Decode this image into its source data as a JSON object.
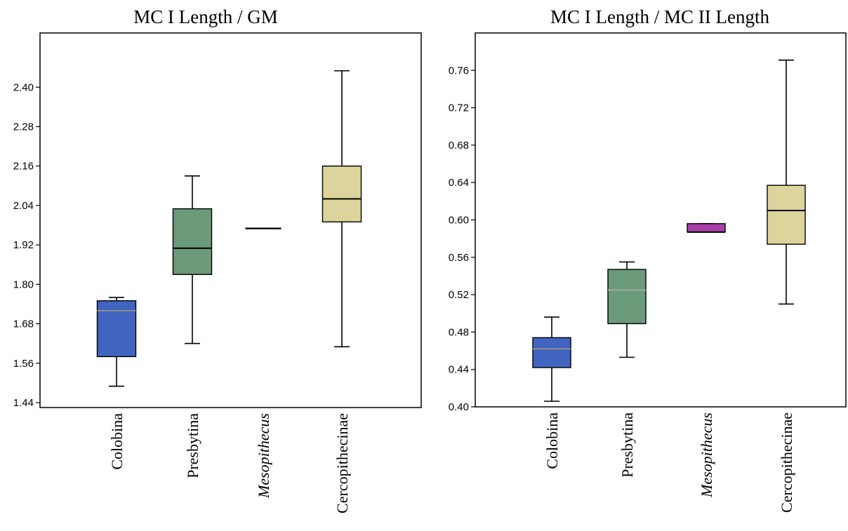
{
  "chart_data": [
    {
      "type": "boxplot",
      "title": "MC I Length / GM",
      "xlabel": "",
      "ylabel": "",
      "categories": [
        "Colobina",
        "Presbytina",
        "Mesopithecus",
        "Cercopithecinae"
      ],
      "italic_categories": [
        "Mesopithecus"
      ],
      "ylim": [
        1.425,
        2.565
      ],
      "yticks": [
        1.44,
        1.56,
        1.68,
        1.8,
        1.92,
        2.04,
        2.16,
        2.28,
        2.4
      ],
      "ytick_labels": [
        "1.44",
        "1.56",
        "1.68",
        "1.80",
        "1.92",
        "2.04",
        "2.16",
        "2.28",
        "2.40"
      ],
      "grid": false,
      "boxes": [
        {
          "category": "Colobina",
          "min": 1.49,
          "q1": 1.58,
          "median": 1.72,
          "q3": 1.75,
          "max": 1.76,
          "color": "#4064c0",
          "median_color": "#8c8c8c"
        },
        {
          "category": "Presbytina",
          "min": 1.62,
          "q1": 1.83,
          "median": 1.91,
          "q3": 2.03,
          "max": 2.13,
          "color": "#6a9a7a",
          "median_color": "#000000"
        },
        {
          "category": "Mesopithecus",
          "min": 1.97,
          "q1": 1.97,
          "median": 1.97,
          "q3": 1.97,
          "max": 1.97,
          "color": "#000000",
          "median_color": "#000000"
        },
        {
          "category": "Cercopithecinae",
          "min": 1.61,
          "q1": 1.99,
          "median": 2.06,
          "q3": 2.16,
          "max": 2.45,
          "color": "#dcd49c",
          "median_color": "#000000"
        }
      ]
    },
    {
      "type": "boxplot",
      "title": "MC I Length / MC II Length",
      "xlabel": "",
      "ylabel": "",
      "categories": [
        "Colobina",
        "Presbytina",
        "Mesopithecus",
        "Cercopithecinae"
      ],
      "italic_categories": [
        "Mesopithecus"
      ],
      "ylim": [
        0.4,
        0.8
      ],
      "yticks": [
        0.4,
        0.44,
        0.48,
        0.52,
        0.56,
        0.6,
        0.64,
        0.68,
        0.72,
        0.76
      ],
      "ytick_labels": [
        "0.40",
        "0.44",
        "0.48",
        "0.52",
        "0.56",
        "0.60",
        "0.64",
        "0.68",
        "0.72",
        "0.76"
      ],
      "grid": false,
      "boxes": [
        {
          "category": "Colobina",
          "min": 0.406,
          "q1": 0.442,
          "median": 0.462,
          "q3": 0.474,
          "max": 0.496,
          "color": "#4064c0",
          "median_color": "#8c8c8c"
        },
        {
          "category": "Presbytina",
          "min": 0.453,
          "q1": 0.489,
          "median": 0.525,
          "q3": 0.547,
          "max": 0.555,
          "color": "#6a9a7a",
          "median_color": "#a8a8a8"
        },
        {
          "category": "Mesopithecus",
          "min": 0.587,
          "q1": 0.587,
          "median": 0.587,
          "q3": 0.596,
          "max": 0.596,
          "color": "#a840a8",
          "median_color": "#000000"
        },
        {
          "category": "Cercopithecinae",
          "min": 0.51,
          "q1": 0.574,
          "median": 0.61,
          "q3": 0.637,
          "max": 0.771,
          "color": "#dcd49c",
          "median_color": "#000000"
        }
      ]
    }
  ]
}
